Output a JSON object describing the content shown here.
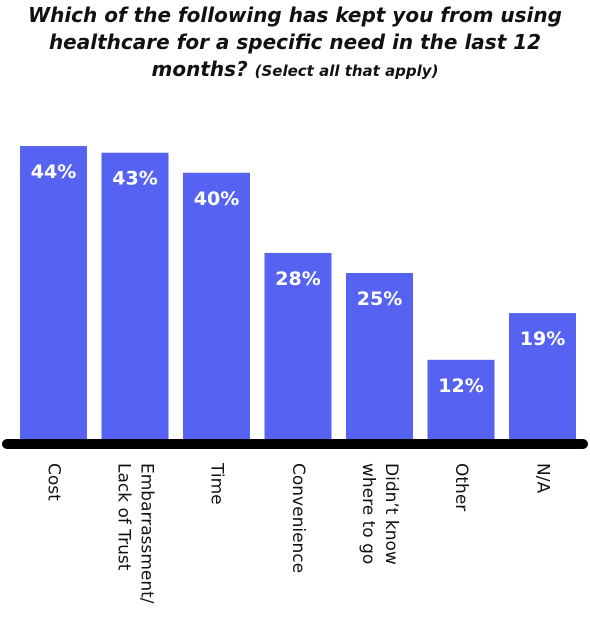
{
  "title": {
    "line1": "Which of the following has kept you from using",
    "line2": "healthcare for a specific need in the last 12",
    "line3": "months?",
    "subtitle": "(Select all that apply)"
  },
  "chart_data": {
    "type": "bar",
    "title": "Which of the following has kept you from using healthcare for a specific need in the last 12 months? (Select all that apply)",
    "categories": [
      "Cost",
      "Embarrassment/ Lack of Trust",
      "Time",
      "Convenience",
      "Didn't know where to go",
      "Other",
      "N/A"
    ],
    "category_lines": [
      [
        "Cost"
      ],
      [
        "Embarrassment/",
        "Lack of Trust"
      ],
      [
        "Time"
      ],
      [
        "Convenience"
      ],
      [
        "Didn’t know",
        "where to go"
      ],
      [
        "Other"
      ],
      [
        "N/A"
      ]
    ],
    "values": [
      44,
      43,
      40,
      28,
      25,
      12,
      19
    ],
    "value_labels": [
      "44%",
      "43%",
      "40%",
      "28%",
      "25%",
      "12%",
      "19%"
    ],
    "unit": "%",
    "ylim": [
      0,
      47
    ],
    "grid": false,
    "legend": "none",
    "colors": {
      "bar": "#5662F2",
      "axis": "#000000",
      "label": "#ffffff",
      "text": "#111111"
    }
  }
}
